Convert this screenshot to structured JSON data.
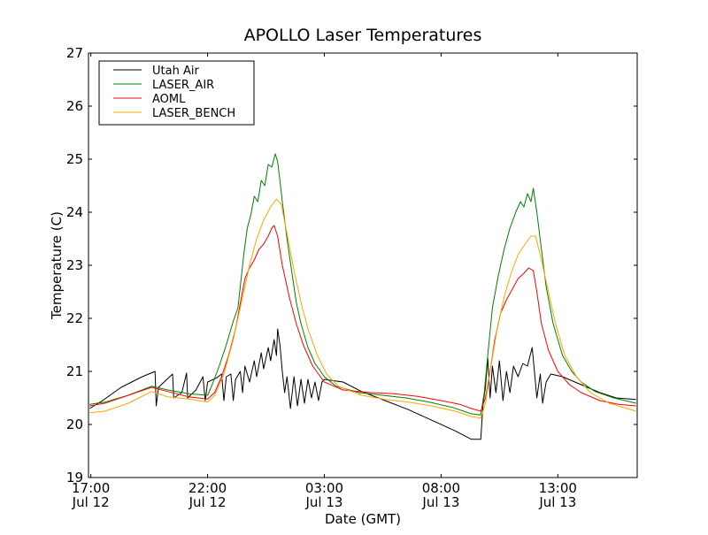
{
  "chart_data": {
    "type": "line",
    "title": "APOLLO Laser Temperatures",
    "xlabel": "Date (GMT)",
    "ylabel": "Temperature (C)",
    "xlim": [
      16.9,
      40.4
    ],
    "ylim": [
      19,
      27
    ],
    "x_unit": "hours since Jul 12 00:00 GMT",
    "grid": false,
    "legend_position": "top-left",
    "x_ticks": [
      {
        "x": 17,
        "line1": "17:00",
        "line2": "Jul 12"
      },
      {
        "x": 22,
        "line1": "22:00",
        "line2": "Jul 12"
      },
      {
        "x": 27,
        "line1": "03:00",
        "line2": "Jul 13"
      },
      {
        "x": 32,
        "line1": "08:00",
        "line2": "Jul 13"
      },
      {
        "x": 37,
        "line1": "13:00",
        "line2": "Jul 13"
      }
    ],
    "y_ticks": [
      "19",
      "20",
      "21",
      "22",
      "23",
      "24",
      "25",
      "26",
      "27"
    ],
    "series": [
      {
        "name": "Utah Air",
        "color": "#000000",
        "points": [
          [
            16.95,
            20.3
          ],
          [
            17.5,
            20.45
          ],
          [
            18.3,
            20.7
          ],
          [
            19.2,
            20.9
          ],
          [
            19.75,
            21.0
          ],
          [
            19.8,
            20.35
          ],
          [
            19.9,
            20.7
          ],
          [
            20.5,
            20.95
          ],
          [
            20.55,
            20.5
          ],
          [
            20.9,
            20.6
          ],
          [
            21.1,
            20.97
          ],
          [
            21.15,
            20.5
          ],
          [
            21.5,
            20.65
          ],
          [
            21.8,
            20.9
          ],
          [
            21.9,
            20.45
          ],
          [
            22.0,
            20.8
          ],
          [
            22.4,
            20.88
          ],
          [
            22.6,
            20.95
          ],
          [
            22.7,
            20.45
          ],
          [
            22.8,
            20.9
          ],
          [
            23.0,
            20.95
          ],
          [
            23.1,
            20.45
          ],
          [
            23.2,
            20.85
          ],
          [
            23.4,
            21.0
          ],
          [
            23.5,
            20.6
          ],
          [
            23.6,
            21.1
          ],
          [
            23.8,
            20.8
          ],
          [
            24.0,
            21.2
          ],
          [
            24.1,
            20.9
          ],
          [
            24.3,
            21.35
          ],
          [
            24.4,
            21.05
          ],
          [
            24.6,
            21.45
          ],
          [
            24.7,
            21.2
          ],
          [
            24.85,
            21.6
          ],
          [
            24.95,
            21.3
          ],
          [
            25.0,
            21.8
          ],
          [
            25.1,
            21.5
          ],
          [
            25.2,
            21.0
          ],
          [
            25.3,
            20.6
          ],
          [
            25.4,
            20.9
          ],
          [
            25.55,
            20.3
          ],
          [
            25.7,
            20.9
          ],
          [
            25.85,
            20.35
          ],
          [
            26.0,
            20.85
          ],
          [
            26.15,
            20.4
          ],
          [
            26.3,
            20.85
          ],
          [
            26.45,
            20.5
          ],
          [
            26.6,
            20.8
          ],
          [
            26.75,
            20.45
          ],
          [
            26.9,
            20.8
          ],
          [
            27.0,
            20.85
          ],
          [
            27.8,
            20.8
          ],
          [
            28.6,
            20.62
          ],
          [
            29.6,
            20.45
          ],
          [
            30.6,
            20.28
          ],
          [
            31.6,
            20.08
          ],
          [
            32.6,
            19.88
          ],
          [
            33.3,
            19.72
          ],
          [
            33.7,
            19.72
          ],
          [
            33.8,
            20.4
          ],
          [
            33.9,
            20.7
          ],
          [
            34.0,
            21.25
          ],
          [
            34.1,
            20.5
          ],
          [
            34.2,
            21.1
          ],
          [
            34.35,
            20.6
          ],
          [
            34.5,
            21.2
          ],
          [
            34.65,
            20.45
          ],
          [
            34.8,
            21.0
          ],
          [
            34.95,
            20.6
          ],
          [
            35.1,
            21.1
          ],
          [
            35.3,
            20.9
          ],
          [
            35.5,
            21.15
          ],
          [
            35.7,
            21.1
          ],
          [
            35.9,
            21.45
          ],
          [
            36.0,
            21.0
          ],
          [
            36.1,
            20.5
          ],
          [
            36.25,
            20.95
          ],
          [
            36.35,
            20.4
          ],
          [
            36.5,
            20.8
          ],
          [
            36.7,
            20.95
          ],
          [
            37.2,
            20.9
          ],
          [
            38.0,
            20.75
          ],
          [
            38.8,
            20.6
          ],
          [
            39.5,
            20.5
          ],
          [
            40.35,
            20.47
          ]
        ]
      },
      {
        "name": "LASER_AIR",
        "color": "#008000",
        "points": [
          [
            16.95,
            20.38
          ],
          [
            17.6,
            20.42
          ],
          [
            18.6,
            20.55
          ],
          [
            19.6,
            20.72
          ],
          [
            20.3,
            20.65
          ],
          [
            21.2,
            20.58
          ],
          [
            22.0,
            20.55
          ],
          [
            22.2,
            20.75
          ],
          [
            22.5,
            21.1
          ],
          [
            22.8,
            21.5
          ],
          [
            23.1,
            21.95
          ],
          [
            23.3,
            22.2
          ],
          [
            23.45,
            22.8
          ],
          [
            23.55,
            23.2
          ],
          [
            23.7,
            23.7
          ],
          [
            23.85,
            23.95
          ],
          [
            24.0,
            24.3
          ],
          [
            24.15,
            24.2
          ],
          [
            24.3,
            24.6
          ],
          [
            24.45,
            24.5
          ],
          [
            24.6,
            24.9
          ],
          [
            24.75,
            24.85
          ],
          [
            24.9,
            25.1
          ],
          [
            25.0,
            24.95
          ],
          [
            25.1,
            24.6
          ],
          [
            25.2,
            24.2
          ],
          [
            25.4,
            23.5
          ],
          [
            25.6,
            22.9
          ],
          [
            25.8,
            22.3
          ],
          [
            26.0,
            21.9
          ],
          [
            26.3,
            21.45
          ],
          [
            26.6,
            21.15
          ],
          [
            27.0,
            20.9
          ],
          [
            27.5,
            20.72
          ],
          [
            28.5,
            20.6
          ],
          [
            29.5,
            20.55
          ],
          [
            30.5,
            20.5
          ],
          [
            31.5,
            20.42
          ],
          [
            32.5,
            20.32
          ],
          [
            33.3,
            20.2
          ],
          [
            33.7,
            20.18
          ],
          [
            33.85,
            20.6
          ],
          [
            34.0,
            21.3
          ],
          [
            34.2,
            22.2
          ],
          [
            34.45,
            22.8
          ],
          [
            34.7,
            23.3
          ],
          [
            34.95,
            23.7
          ],
          [
            35.2,
            24.0
          ],
          [
            35.4,
            24.2
          ],
          [
            35.55,
            24.1
          ],
          [
            35.7,
            24.35
          ],
          [
            35.85,
            24.2
          ],
          [
            35.95,
            24.45
          ],
          [
            36.1,
            24.0
          ],
          [
            36.3,
            23.3
          ],
          [
            36.5,
            22.6
          ],
          [
            36.8,
            21.9
          ],
          [
            37.2,
            21.3
          ],
          [
            37.6,
            21.0
          ],
          [
            38.0,
            20.8
          ],
          [
            38.6,
            20.62
          ],
          [
            39.4,
            20.5
          ],
          [
            40.35,
            20.4
          ]
        ]
      },
      {
        "name": "AOML",
        "color": "#ff0000",
        "points": [
          [
            16.95,
            20.35
          ],
          [
            17.6,
            20.4
          ],
          [
            18.6,
            20.55
          ],
          [
            19.6,
            20.7
          ],
          [
            20.3,
            20.62
          ],
          [
            21.2,
            20.52
          ],
          [
            22.0,
            20.48
          ],
          [
            22.3,
            20.6
          ],
          [
            22.6,
            20.9
          ],
          [
            22.9,
            21.3
          ],
          [
            23.2,
            21.8
          ],
          [
            23.45,
            22.4
          ],
          [
            23.6,
            22.75
          ],
          [
            23.8,
            22.95
          ],
          [
            24.0,
            23.1
          ],
          [
            24.2,
            23.3
          ],
          [
            24.4,
            23.4
          ],
          [
            24.6,
            23.55
          ],
          [
            24.75,
            23.7
          ],
          [
            24.85,
            23.75
          ],
          [
            25.0,
            23.55
          ],
          [
            25.2,
            23.0
          ],
          [
            25.5,
            22.4
          ],
          [
            25.8,
            21.9
          ],
          [
            26.1,
            21.5
          ],
          [
            26.5,
            21.1
          ],
          [
            27.0,
            20.8
          ],
          [
            27.8,
            20.65
          ],
          [
            29.0,
            20.6
          ],
          [
            30.0,
            20.58
          ],
          [
            31.0,
            20.53
          ],
          [
            32.0,
            20.45
          ],
          [
            32.8,
            20.38
          ],
          [
            33.3,
            20.3
          ],
          [
            33.7,
            20.25
          ],
          [
            33.9,
            20.5
          ],
          [
            34.1,
            21.0
          ],
          [
            34.3,
            21.6
          ],
          [
            34.55,
            22.1
          ],
          [
            34.8,
            22.35
          ],
          [
            35.05,
            22.55
          ],
          [
            35.3,
            22.75
          ],
          [
            35.55,
            22.85
          ],
          [
            35.75,
            22.95
          ],
          [
            35.95,
            22.9
          ],
          [
            36.1,
            22.5
          ],
          [
            36.3,
            21.9
          ],
          [
            36.6,
            21.4
          ],
          [
            37.0,
            21.0
          ],
          [
            37.5,
            20.75
          ],
          [
            38.0,
            20.6
          ],
          [
            38.8,
            20.45
          ],
          [
            39.6,
            20.38
          ],
          [
            40.35,
            20.35
          ]
        ]
      },
      {
        "name": "LASER_BENCH",
        "color": "#ffa500",
        "points": [
          [
            16.95,
            20.22
          ],
          [
            17.6,
            20.25
          ],
          [
            18.6,
            20.4
          ],
          [
            19.6,
            20.62
          ],
          [
            20.3,
            20.52
          ],
          [
            21.2,
            20.48
          ],
          [
            22.0,
            20.42
          ],
          [
            22.3,
            20.55
          ],
          [
            22.7,
            20.95
          ],
          [
            23.1,
            21.6
          ],
          [
            23.5,
            22.4
          ],
          [
            23.8,
            23.0
          ],
          [
            24.1,
            23.5
          ],
          [
            24.4,
            23.85
          ],
          [
            24.7,
            24.1
          ],
          [
            24.95,
            24.25
          ],
          [
            25.15,
            24.15
          ],
          [
            25.4,
            23.6
          ],
          [
            25.7,
            22.9
          ],
          [
            26.0,
            22.3
          ],
          [
            26.3,
            21.8
          ],
          [
            26.7,
            21.3
          ],
          [
            27.1,
            20.95
          ],
          [
            27.6,
            20.72
          ],
          [
            28.6,
            20.55
          ],
          [
            29.6,
            20.47
          ],
          [
            30.6,
            20.42
          ],
          [
            31.6,
            20.35
          ],
          [
            32.6,
            20.25
          ],
          [
            33.3,
            20.15
          ],
          [
            33.7,
            20.12
          ],
          [
            33.9,
            20.4
          ],
          [
            34.1,
            21.0
          ],
          [
            34.4,
            21.8
          ],
          [
            34.7,
            22.4
          ],
          [
            35.0,
            22.85
          ],
          [
            35.3,
            23.2
          ],
          [
            35.6,
            23.4
          ],
          [
            35.85,
            23.55
          ],
          [
            36.05,
            23.55
          ],
          [
            36.3,
            23.1
          ],
          [
            36.6,
            22.5
          ],
          [
            36.9,
            21.9
          ],
          [
            37.3,
            21.3
          ],
          [
            37.8,
            20.9
          ],
          [
            38.4,
            20.6
          ],
          [
            39.2,
            20.4
          ],
          [
            40.35,
            20.25
          ]
        ]
      }
    ]
  }
}
